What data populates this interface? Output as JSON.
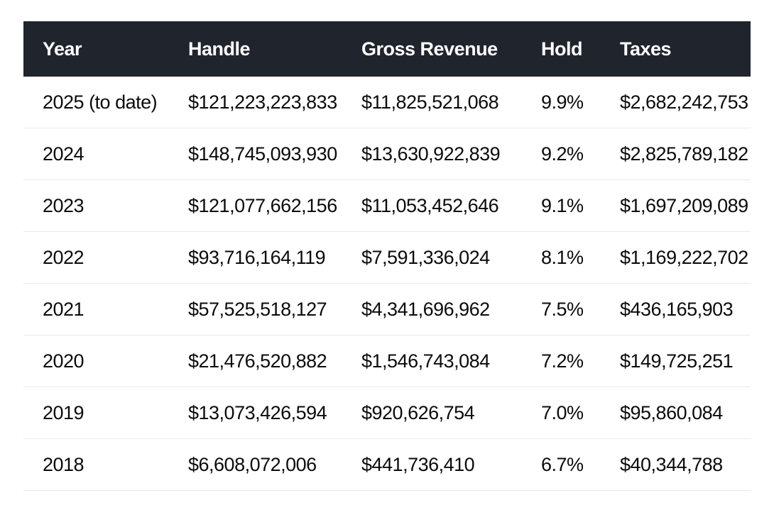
{
  "chart_data": {
    "type": "table",
    "columns": [
      "Year",
      "Handle",
      "Gross Revenue",
      "Hold",
      "Taxes"
    ],
    "rows": [
      [
        "2025 (to date)",
        "$121,223,223,833",
        "$11,825,521,068",
        "9.9%",
        "$2,682,242,753"
      ],
      [
        "2024",
        "$148,745,093,930",
        "$13,630,922,839",
        "9.2%",
        "$2,825,789,182"
      ],
      [
        "2023",
        "$121,077,662,156",
        "$11,053,452,646",
        "9.1%",
        "$1,697,209,089"
      ],
      [
        "2022",
        "$93,716,164,119",
        "$7,591,336,024",
        "8.1%",
        "$1,169,222,702"
      ],
      [
        "2021",
        "$57,525,518,127",
        "$4,341,696,962",
        "7.5%",
        "$436,165,903"
      ],
      [
        "2020",
        "$21,476,520,882",
        "$1,546,743,084",
        "7.2%",
        "$149,725,251"
      ],
      [
        "2019",
        "$13,073,426,594",
        "$920,626,754",
        "7.0%",
        "$95,860,084"
      ],
      [
        "2018",
        "$6,608,072,006",
        "$441,736,410",
        "6.7%",
        "$40,344,788"
      ]
    ]
  },
  "colors": {
    "header_background": "#20242d",
    "header_text": "#ffffff",
    "cell_text": "#0b0b0c",
    "row_divider": "#e7e9f2",
    "page_background": "#ffffff"
  }
}
